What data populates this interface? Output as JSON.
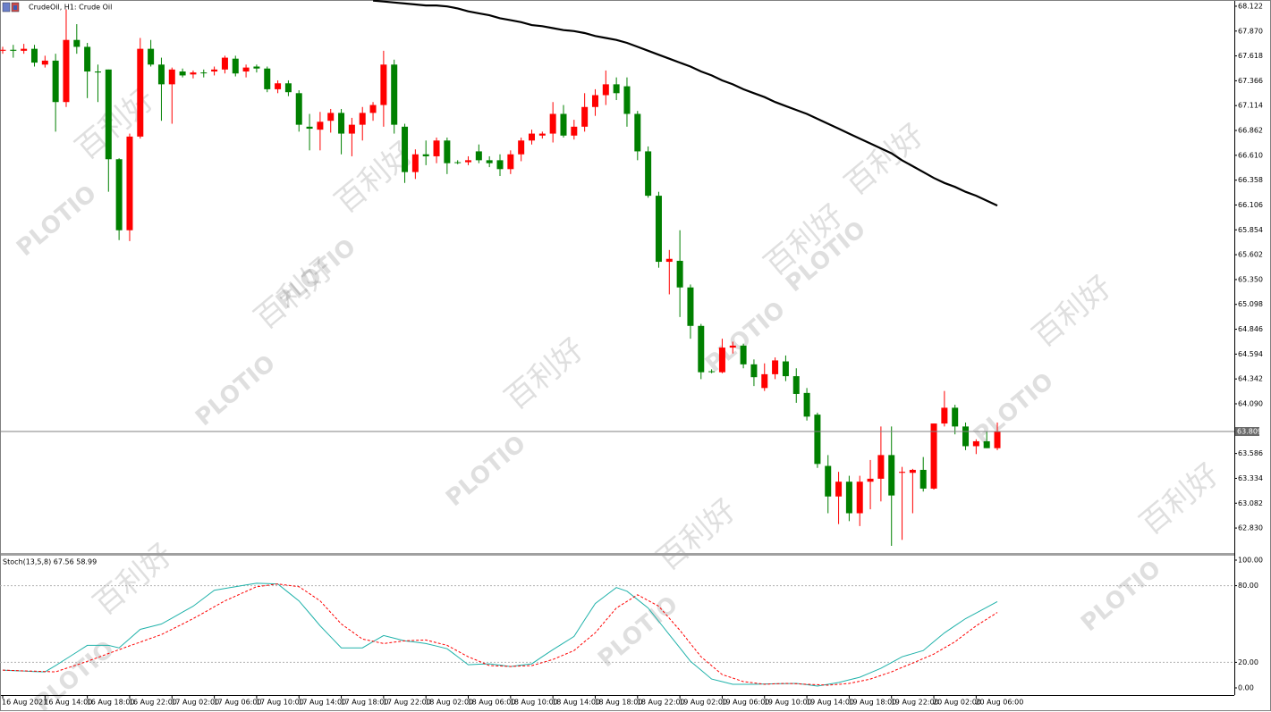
{
  "chart_data": [
    {
      "type": "candlestick",
      "title": "CrudeOil, H1: Crude Oil",
      "up_color": "#ff0000",
      "down_color": "#008000",
      "grid": false,
      "ylim": [
        62.577,
        68.185
      ],
      "yticks": [
        68.122,
        {
          "value": 67.87,
          "label": "67.870"
        },
        67.618,
        67.366,
        67.114,
        66.862,
        {
          "value": 66.61,
          "label": "66.610"
        },
        66.358,
        66.106,
        65.854,
        65.602,
        {
          "value": 65.35,
          "label": "65.350"
        },
        65.098,
        64.846,
        64.594,
        64.342,
        {
          "value": 64.09,
          "label": "64.090"
        },
        63.586,
        63.334,
        63.082,
        {
          "value": 62.83,
          "label": "62.830"
        }
      ],
      "price_line": {
        "value": 63.809,
        "color": "#808080"
      },
      "open": [
        67.67,
        67.68,
        67.67,
        67.69,
        67.53,
        67.57,
        67.15,
        67.78,
        67.71,
        67.46,
        67.48,
        66.57,
        65.85,
        66.8,
        67.69,
        67.53,
        67.33,
        67.46,
        67.43,
        67.45,
        67.46,
        67.48,
        67.59,
        67.46,
        67.51,
        67.49,
        67.28,
        67.34,
        67.24,
        66.9,
        66.87,
        66.96,
        67.04,
        66.83,
        66.92,
        67.04,
        67.12,
        67.53,
        66.9,
        66.44,
        66.62,
        66.6,
        66.76,
        66.54,
        66.54,
        66.65,
        66.56,
        66.56,
        66.47,
        66.62,
        66.76,
        66.81,
        66.83,
        67.03,
        66.81,
        66.9,
        67.1,
        67.22,
        67.33,
        67.31,
        67.03,
        66.65,
        66.2,
        65.53,
        65.54,
        65.27,
        64.88,
        64.42,
        64.41,
        64.66,
        64.68,
        64.49,
        64.25,
        64.39,
        64.52,
        64.37,
        64.2,
        63.98,
        63.46,
        63.15,
        63.3,
        62.98,
        63.3,
        63.33,
        63.57,
        63.39,
        63.39,
        63.42,
        63.23,
        63.89,
        64.05,
        63.86,
        63.66,
        63.71,
        63.64
      ],
      "high": [
        67.71,
        67.73,
        67.74,
        67.73,
        67.62,
        67.64,
        68.09,
        67.94,
        67.75,
        67.53,
        67.48,
        66.58,
        66.83,
        67.8,
        67.78,
        67.6,
        67.5,
        67.49,
        67.47,
        67.48,
        67.51,
        67.62,
        67.62,
        67.53,
        67.53,
        67.51,
        67.37,
        67.37,
        67.27,
        67.03,
        67.05,
        67.08,
        67.08,
        66.99,
        67.1,
        67.15,
        67.67,
        67.58,
        66.93,
        66.67,
        66.76,
        66.79,
        66.79,
        66.56,
        66.6,
        66.72,
        66.6,
        66.62,
        66.66,
        66.79,
        66.87,
        66.85,
        67.15,
        67.12,
        66.97,
        67.24,
        67.28,
        67.47,
        67.4,
        67.4,
        67.06,
        66.7,
        66.24,
        65.65,
        65.85,
        65.3,
        64.9,
        64.44,
        64.75,
        64.72,
        64.7,
        64.54,
        64.5,
        64.56,
        64.58,
        64.45,
        64.25,
        64.0,
        63.57,
        63.4,
        63.36,
        63.36,
        63.52,
        63.86,
        63.86,
        63.45,
        63.43,
        63.55,
        63.89,
        64.22,
        64.08,
        63.9,
        63.73,
        63.81,
        63.9
      ],
      "low": [
        67.64,
        67.6,
        67.64,
        67.51,
        67.5,
        66.85,
        67.1,
        67.64,
        67.19,
        67.15,
        66.24,
        65.75,
        65.74,
        66.78,
        67.51,
        66.96,
        66.93,
        67.4,
        67.39,
        67.4,
        67.42,
        67.44,
        67.41,
        67.4,
        67.45,
        67.25,
        67.24,
        67.21,
        66.85,
        66.66,
        66.66,
        66.84,
        66.62,
        66.6,
        66.76,
        66.96,
        66.9,
        66.83,
        66.33,
        66.37,
        66.51,
        66.53,
        66.42,
        66.52,
        66.51,
        66.53,
        66.49,
        66.4,
        66.42,
        66.55,
        66.72,
        66.78,
        66.74,
        66.79,
        66.77,
        66.85,
        67.01,
        67.12,
        67.17,
        66.9,
        66.56,
        66.18,
        65.47,
        65.2,
        64.97,
        64.75,
        64.34,
        64.4,
        64.4,
        64.6,
        64.45,
        64.27,
        64.22,
        64.34,
        64.32,
        64.1,
        63.92,
        63.44,
        62.98,
        62.87,
        62.9,
        62.85,
        63.02,
        63.1,
        62.65,
        62.71,
        62.98,
        63.2,
        63.22,
        63.86,
        63.78,
        63.62,
        63.58,
        63.64,
        63.62
      ],
      "close": [
        67.68,
        67.67,
        67.69,
        67.55,
        67.57,
        67.15,
        67.78,
        67.71,
        67.46,
        67.45,
        66.57,
        65.85,
        66.8,
        67.69,
        67.53,
        67.33,
        67.48,
        67.42,
        67.45,
        67.45,
        67.48,
        67.6,
        67.44,
        67.5,
        67.49,
        67.28,
        67.34,
        67.25,
        66.92,
        66.88,
        66.95,
        67.04,
        66.83,
        66.92,
        67.04,
        67.12,
        67.53,
        66.92,
        66.44,
        66.62,
        66.6,
        66.76,
        66.53,
        66.54,
        66.56,
        66.56,
        66.53,
        66.47,
        66.62,
        66.76,
        66.83,
        66.83,
        67.03,
        66.81,
        66.9,
        67.1,
        67.22,
        67.33,
        67.24,
        67.03,
        66.65,
        66.2,
        65.53,
        65.56,
        65.27,
        64.88,
        64.41,
        64.42,
        64.66,
        64.68,
        64.49,
        64.36,
        64.39,
        64.53,
        64.37,
        64.19,
        63.96,
        63.48,
        63.15,
        63.3,
        62.98,
        63.3,
        63.33,
        63.57,
        63.16,
        63.4,
        63.42,
        63.23,
        63.89,
        64.05,
        63.86,
        63.66,
        63.71,
        63.64,
        63.81
      ],
      "line": {
        "color": "#000000",
        "values": [
          null,
          null,
          null,
          null,
          null,
          null,
          null,
          null,
          null,
          null,
          null,
          null,
          null,
          null,
          null,
          null,
          null,
          null,
          null,
          null,
          null,
          null,
          null,
          null,
          null,
          null,
          null,
          null,
          null,
          null,
          null,
          null,
          null,
          null,
          null,
          68.18,
          68.17,
          68.16,
          68.15,
          68.14,
          68.13,
          68.13,
          68.12,
          68.1,
          68.07,
          68.05,
          68.03,
          68.0,
          67.98,
          67.96,
          67.93,
          67.92,
          67.9,
          67.88,
          67.87,
          67.85,
          67.82,
          67.8,
          67.78,
          67.75,
          67.71,
          67.67,
          67.63,
          67.59,
          67.55,
          67.51,
          67.46,
          67.42,
          67.37,
          67.33,
          67.28,
          67.24,
          67.2,
          67.15,
          67.11,
          67.07,
          67.03,
          66.98,
          66.93,
          66.88,
          66.83,
          66.78,
          66.73,
          66.68,
          66.63,
          66.56,
          66.5,
          66.44,
          66.38,
          66.33,
          66.29,
          66.24,
          66.2,
          66.15,
          66.1
        ]
      }
    },
    {
      "type": "line",
      "title": "Stoch(13,5,8) 67.56 58.99",
      "ylim": [
        -5.6,
        102.8
      ],
      "yticks": [
        {
          "value": 100,
          "label": "100.00"
        },
        {
          "value": 80,
          "label": "80.00",
          "level": true
        },
        {
          "value": 20,
          "label": "20.00",
          "level": true
        },
        {
          "value": 0,
          "label": "0.00"
        }
      ],
      "categories": [
        "16 Aug 2021",
        null,
        null,
        null,
        "16 Aug 14:00",
        null,
        null,
        null,
        "16 Aug 18:00",
        null,
        null,
        null,
        "16 Aug 22:00",
        null,
        null,
        null,
        "17 Aug 02:00",
        null,
        null,
        null,
        "17 Aug 06:00",
        null,
        null,
        null,
        "17 Aug 10:00",
        null,
        null,
        null,
        "17 Aug 14:00",
        null,
        null,
        null,
        "17 Aug 18:00",
        null,
        null,
        null,
        "17 Aug 22:00",
        null,
        null,
        null,
        "18 Aug 02:00",
        null,
        null,
        null,
        "18 Aug 06:00",
        null,
        null,
        null,
        "18 Aug 10:00",
        null,
        null,
        null,
        "18 Aug 14:00",
        null,
        null,
        null,
        "18 Aug 18:00",
        null,
        null,
        null,
        "18 Aug 22:00",
        null,
        null,
        null,
        "19 Aug 02:00",
        null,
        null,
        null,
        "19 Aug 06:00",
        null,
        null,
        null,
        "19 Aug 10:00",
        null,
        null,
        null,
        "19 Aug 14:00",
        null,
        null,
        null,
        "19 Aug 18:00",
        null,
        null,
        null,
        "19 Aug 22:00",
        null,
        null,
        null,
        "20 Aug 02:00",
        null,
        null,
        null,
        "20 Aug 06:00",
        null,
        null
      ],
      "series": [
        {
          "color": "#20b2aa",
          "values": [
            13.9,
            13.5,
            13.2,
            12.8,
            12.5,
            17.4,
            22.7,
            28,
            33.3,
            33.3,
            33.3,
            31.3,
            38.5,
            45.8,
            47.9,
            50,
            54.6,
            59.3,
            63.9,
            70.2,
            76.4,
            77.8,
            79.2,
            80.6,
            81.9,
            81.6,
            81.3,
            74.7,
            68.1,
            58.4,
            48.6,
            40,
            31.3,
            31.3,
            31.3,
            36.2,
            41,
            38.9,
            36.8,
            35.8,
            34.7,
            32.7,
            30.6,
            24.4,
            18.1,
            18.5,
            18.8,
            17.8,
            16.7,
            17.8,
            18.8,
            24.4,
            29.9,
            35.1,
            40.3,
            53.2,
            66,
            72.3,
            78.5,
            75.7,
            69.1,
            62.5,
            52.1,
            41.7,
            31.3,
            20.8,
            13.9,
            6.9,
            4.9,
            2.8,
            2.8,
            2.8,
            3.1,
            3.2,
            3.3,
            3.5,
            2.5,
            1.4,
            2.8,
            4.2,
            6.3,
            8.3,
            11.8,
            15.3,
            19.8,
            24.3,
            26.8,
            29.2,
            36.2,
            43.1,
            48.7,
            54.2,
            58.6,
            63.1,
            67.56
          ]
        },
        {
          "color": "#ff0000",
          "dashed": true,
          "values": [
            13.9,
            13.6,
            13.3,
            13.1,
            12.8,
            12.5,
            15.3,
            18,
            20.8,
            23.8,
            26.9,
            29.9,
            32.9,
            35.8,
            38.8,
            41.7,
            45.9,
            50,
            54.2,
            58.8,
            63.5,
            68.1,
            71.8,
            75.5,
            79.2,
            80.3,
            81.3,
            80.3,
            79.2,
            73.7,
            68.1,
            59.1,
            50,
            44.1,
            38.2,
            36.5,
            34.7,
            35.8,
            36.8,
            37.2,
            37.5,
            35.4,
            33.3,
            28.8,
            24.3,
            20.9,
            17.4,
            17.1,
            16.7,
            17.1,
            17.4,
            19.8,
            22.2,
            25.7,
            29.2,
            36.2,
            43.1,
            52.8,
            62.5,
            67.7,
            72.9,
            68.4,
            63.9,
            54.5,
            45.1,
            34.7,
            24.3,
            17.4,
            10.4,
            7.7,
            4.9,
            3.9,
            2.8,
            3.2,
            3.5,
            3.2,
            2.8,
            2.5,
            2.1,
            2.8,
            3.5,
            5.2,
            6.9,
            9.7,
            12.5,
            16,
            19.4,
            22.9,
            26.4,
            31.3,
            36.1,
            42.4,
            48.6,
            53.8,
            58.99
          ]
        }
      ]
    }
  ],
  "watermark": {
    "text": "百利好",
    "logo": "PLOTIO"
  }
}
